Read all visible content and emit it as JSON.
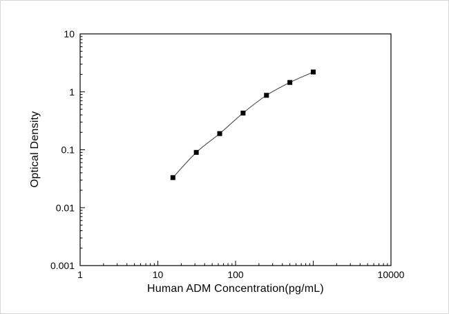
{
  "chart_data": {
    "type": "line",
    "marker": "square",
    "title": "",
    "xlabel": "Human ADM Concentration(pg/mL)",
    "ylabel": "Optical Density",
    "x_scale": "log",
    "y_scale": "log",
    "xlim": [
      1,
      10000
    ],
    "ylim": [
      0.001,
      10
    ],
    "grid": false,
    "legend": "none",
    "line_color": "#4a4a4a",
    "marker_color": "#000000",
    "frame_color": "#000000",
    "x_ticks": [
      {
        "value": 1,
        "label": "1"
      },
      {
        "value": 10,
        "label": "10"
      },
      {
        "value": 100,
        "label": "100"
      },
      {
        "value": 1000,
        "label": ""
      },
      {
        "value": 10000,
        "label": "10000"
      }
    ],
    "y_ticks": [
      {
        "value": 0.001,
        "label": "0.001"
      },
      {
        "value": 0.01,
        "label": "0.01"
      },
      {
        "value": 0.1,
        "label": "0.1"
      },
      {
        "value": 1,
        "label": "1"
      },
      {
        "value": 10,
        "label": "10"
      }
    ],
    "points": [
      {
        "x": 15.625,
        "y": 0.033
      },
      {
        "x": 31.25,
        "y": 0.09
      },
      {
        "x": 62.5,
        "y": 0.19
      },
      {
        "x": 125,
        "y": 0.43
      },
      {
        "x": 250,
        "y": 0.87
      },
      {
        "x": 500,
        "y": 1.45
      },
      {
        "x": 1000,
        "y": 2.2
      }
    ]
  }
}
